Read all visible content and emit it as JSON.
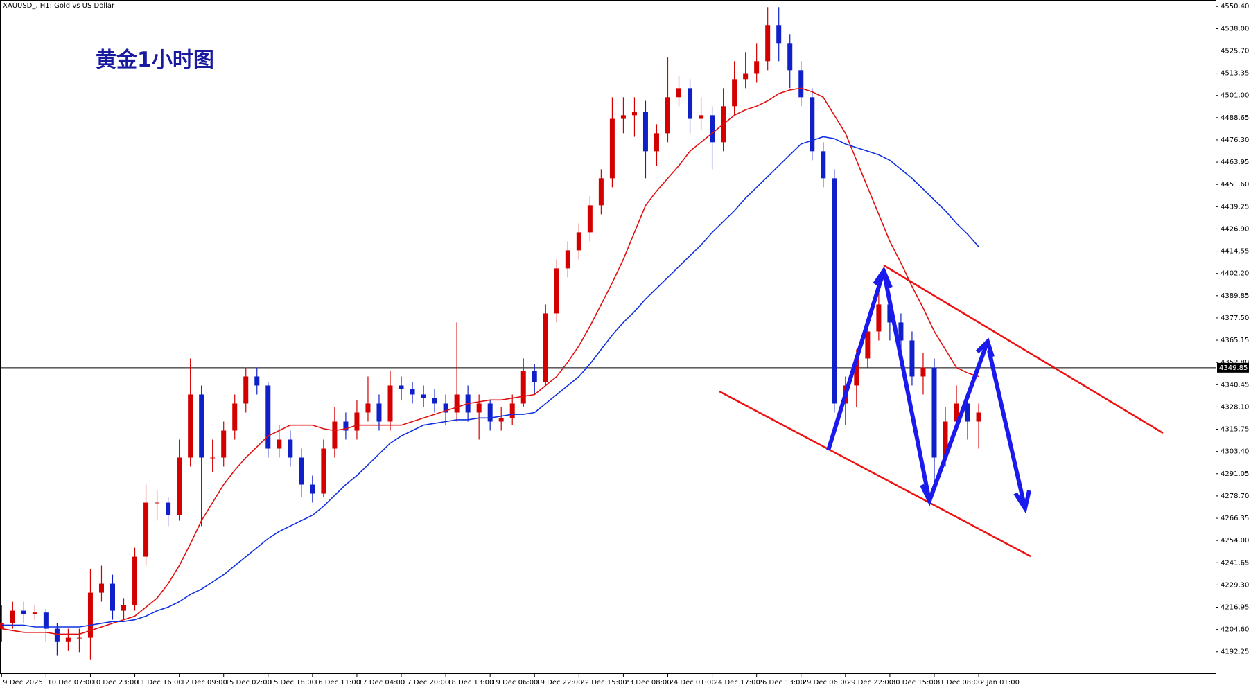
{
  "chart_data": {
    "type": "candlestick",
    "header": "XAUUSD_, H1:  Gold vs US Dollar",
    "title": "黄金1小时图",
    "x": [
      "9 Dec 2025",
      null,
      null,
      null,
      "10 Dec 07:00",
      null,
      null,
      null,
      "10 Dec 23:00",
      null,
      null,
      null,
      "11 Dec 16:00",
      null,
      null,
      null,
      "12 Dec 09:00",
      null,
      null,
      null,
      "15 Dec 02:00",
      null,
      null,
      null,
      "15 Dec 18:00",
      null,
      null,
      null,
      "16 Dec 11:00",
      null,
      null,
      null,
      "17 Dec 04:00",
      null,
      null,
      null,
      "17 Dec 20:00",
      null,
      null,
      null,
      "18 Dec 13:00",
      null,
      null,
      null,
      "19 Dec 06:00",
      null,
      null,
      null,
      "19 Dec 22:00",
      null,
      null,
      null,
      "22 Dec 15:00",
      null,
      null,
      null,
      "23 Dec 08:00",
      null,
      null,
      null,
      "24 Dec 01:00",
      null,
      null,
      null,
      "24 Dec 17:00",
      null,
      null,
      null,
      "26 Dec 13:00",
      null,
      null,
      null,
      "29 Dec 06:00",
      null,
      null,
      null,
      "29 Dec 22:00",
      null,
      null,
      null,
      "30 Dec 15:00",
      null,
      null,
      null,
      "31 Dec 08:00",
      null,
      null,
      null,
      "2 Jan 01:00"
    ],
    "open": [
      4205,
      4208,
      4215,
      4213,
      4214,
      4205,
      4198,
      4200,
      4200,
      4225,
      4230,
      4215,
      4218,
      4245,
      4275,
      4275,
      4268,
      4300,
      4335,
      4300,
      4300,
      4315,
      4330,
      4345,
      4340,
      4305,
      4310,
      4300,
      4285,
      4280,
      4305,
      4320,
      4315,
      4325,
      4330,
      4320,
      4340,
      4338,
      4335,
      4333,
      4330,
      4325,
      4335,
      4325,
      4330,
      4320,
      4322,
      4330,
      4348,
      4342,
      4380,
      4405,
      4415,
      4425,
      4440,
      4455,
      4488,
      4490,
      4492,
      4470,
      4480,
      4500,
      4505,
      4488,
      4490,
      4475,
      4495,
      4510,
      4513,
      4520,
      4540,
      4530,
      4515,
      4500,
      4470,
      4455,
      4330,
      4340,
      4355,
      4370,
      4385,
      4375,
      4365,
      4345,
      4350,
      4300,
      4320,
      4330,
      4320
    ],
    "high": [
      4218,
      4220,
      4220,
      4218,
      4216,
      4208,
      4205,
      4205,
      4238,
      4240,
      4235,
      4222,
      4250,
      4285,
      4282,
      4278,
      4310,
      4355,
      4340,
      4310,
      4320,
      4335,
      4350,
      4350,
      4342,
      4318,
      4315,
      4305,
      4290,
      4310,
      4328,
      4325,
      4332,
      4345,
      4335,
      4348,
      4345,
      4342,
      4340,
      4338,
      4335,
      4375,
      4340,
      4335,
      4332,
      4328,
      4335,
      4355,
      4352,
      4385,
      4410,
      4420,
      4430,
      4445,
      4460,
      4500,
      4500,
      4500,
      4498,
      4485,
      4522,
      4512,
      4510,
      4500,
      4495,
      4505,
      4520,
      4525,
      4530,
      4550,
      4550,
      4535,
      4520,
      4505,
      4475,
      4460,
      4345,
      4360,
      4375,
      4395,
      4390,
      4380,
      4370,
      4358,
      4355,
      4328,
      4340,
      4335,
      4330
    ],
    "low": [
      4198,
      4205,
      4208,
      4210,
      4198,
      4190,
      4193,
      4192,
      4188,
      4220,
      4210,
      4210,
      4215,
      4240,
      4265,
      4262,
      4265,
      4295,
      4262,
      4292,
      4295,
      4310,
      4325,
      4335,
      4300,
      4300,
      4295,
      4278,
      4275,
      4278,
      4300,
      4310,
      4310,
      4320,
      4315,
      4315,
      4332,
      4330,
      4328,
      4325,
      4318,
      4320,
      4320,
      4310,
      4315,
      4315,
      4318,
      4328,
      4335,
      4340,
      4375,
      4400,
      4410,
      4420,
      4435,
      4450,
      4480,
      4478,
      4455,
      4462,
      4475,
      4495,
      4480,
      4482,
      4460,
      4470,
      4490,
      4505,
      4508,
      4515,
      4520,
      4505,
      4495,
      4465,
      4450,
      4325,
      4318,
      4328,
      4350,
      4365,
      4365,
      4355,
      4340,
      4335,
      4280,
      4295,
      4315,
      4310,
      4305
    ],
    "close": [
      4208,
      4215,
      4213,
      4214,
      4205,
      4198,
      4200,
      4200,
      4225,
      4230,
      4215,
      4218,
      4245,
      4275,
      4275,
      4268,
      4300,
      4335,
      4300,
      4300,
      4315,
      4330,
      4345,
      4340,
      4305,
      4310,
      4300,
      4285,
      4280,
      4305,
      4320,
      4315,
      4325,
      4330,
      4320,
      4340,
      4338,
      4335,
      4333,
      4330,
      4325,
      4335,
      4325,
      4330,
      4320,
      4322,
      4330,
      4348,
      4342,
      4380,
      4405,
      4415,
      4425,
      4440,
      4455,
      4488,
      4490,
      4492,
      4470,
      4480,
      4500,
      4505,
      4488,
      4490,
      4475,
      4495,
      4510,
      4513,
      4520,
      4540,
      4530,
      4515,
      4500,
      4470,
      4455,
      4330,
      4340,
      4355,
      4370,
      4385,
      4375,
      4365,
      4345,
      4350,
      4300,
      4320,
      4330,
      4320,
      4325
    ],
    "up_color": "#d40000",
    "down_color": "#1020c8",
    "series": [
      {
        "color": "#e01010",
        "values": [
          4205,
          4204,
          4203,
          4203,
          4203,
          4202,
          4202,
          4202,
          4204,
          4206,
          4208,
          4210,
          4212,
          4217,
          4222,
          4230,
          4240,
          4252,
          4265,
          4275,
          4285,
          4293,
          4300,
          4306,
          4312,
          4315,
          4318,
          4318,
          4318,
          4316,
          4315,
          4316,
          4318,
          4318,
          4318,
          4318,
          4318,
          4320,
          4322,
          4324,
          4326,
          4328,
          4330,
          4331,
          4332,
          4332,
          4333,
          4334,
          4335,
          4340,
          4345,
          4353,
          4362,
          4373,
          4385,
          4397,
          4410,
          4425,
          4440,
          4448,
          4455,
          4462,
          4470,
          4475,
          4480,
          4485,
          4490,
          4493,
          4495,
          4498,
          4502,
          4504,
          4505,
          4503,
          4500,
          4490,
          4480,
          4465,
          4450,
          4435,
          4420,
          4408,
          4395,
          4383,
          4370,
          4360,
          4350,
          4347,
          4345
        ]
      },
      {
        "color": "#1030e0",
        "values": [
          4207,
          4207,
          4207,
          4206,
          4206,
          4206,
          4206,
          4206,
          4207,
          4208,
          4209,
          4209,
          4210,
          4212,
          4215,
          4217,
          4220,
          4224,
          4227,
          4231,
          4235,
          4240,
          4245,
          4250,
          4255,
          4259,
          4262,
          4265,
          4268,
          4273,
          4279,
          4285,
          4290,
          4296,
          4302,
          4308,
          4312,
          4315,
          4318,
          4319,
          4320,
          4321,
          4321,
          4322,
          4322,
          4323,
          4324,
          4324,
          4325,
          4330,
          4335,
          4340,
          4345,
          4352,
          4360,
          4368,
          4375,
          4381,
          4388,
          4394,
          4400,
          4406,
          4412,
          4418,
          4425,
          4431,
          4437,
          4444,
          4450,
          4456,
          4462,
          4468,
          4474,
          4476,
          4478,
          4477,
          4474,
          4472,
          4470,
          4468,
          4465,
          4460,
          4455,
          4449,
          4443,
          4437,
          4430,
          4424,
          4417
        ]
      }
    ],
    "ylim": [
      4179.85,
      4553.95
    ],
    "yticks": [
      {
        "value": 4550.4,
        "label": "4550.40"
      },
      {
        "value": 4538,
        "label": "4538.00"
      },
      {
        "value": 4525.7,
        "label": "4525.70"
      },
      4513.35,
      {
        "value": 4501,
        "label": "4501.00"
      },
      4488.65,
      {
        "value": 4476.3,
        "label": "4476.30"
      },
      4463.95,
      {
        "value": 4451.6,
        "label": "4451.60"
      },
      4439.25,
      {
        "value": 4426.9,
        "label": "4426.90"
      },
      4414.55,
      {
        "value": 4402.2,
        "label": "4402.20"
      },
      4389.85,
      {
        "value": 4377.5,
        "label": "4377.50"
      },
      4365.15,
      {
        "value": 4352.8,
        "label": "4352.80"
      },
      4340.45,
      {
        "value": 4328.1,
        "label": "4328.10"
      },
      4315.75,
      {
        "value": 4303.4,
        "label": "4303.40"
      },
      4291.05,
      {
        "value": 4278.7,
        "label": "4278.70"
      },
      4266.35,
      {
        "value": 4254,
        "label": "4254.00"
      },
      4241.65,
      {
        "value": 4229.3,
        "label": "4229.30"
      },
      4216.95,
      {
        "value": 4204.6,
        "label": "4204.60"
      },
      4192.25
    ],
    "current_price": 4349.85
  }
}
